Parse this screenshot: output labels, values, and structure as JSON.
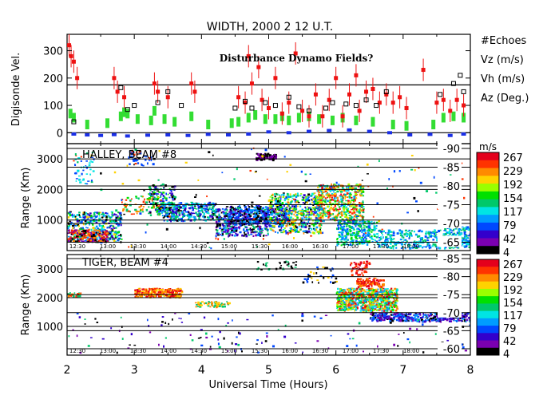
{
  "title": "WIDTH, 2000 2 12 U.T.",
  "overlay_text": "Disturbance Dynamo Fields?",
  "xlabel": "Universal Time (Hours)",
  "x_ticks": [
    "2",
    "3",
    "4",
    "5",
    "6",
    "7",
    "8"
  ],
  "colors": {
    "vz": "#1a2fe6",
    "vh": "#33dd33",
    "az": "#ee1111",
    "echoes": "#000000",
    "grid": "#000000"
  },
  "top_panel": {
    "ylabel": "Digisonde Vel.",
    "y_ticks": [
      "0",
      "100",
      "200",
      "300"
    ],
    "legend": [
      {
        "label": "#Echoes",
        "key": "echoes"
      },
      {
        "label": "Vz (m/s)",
        "key": "vz"
      },
      {
        "label": "Vh (m/s)",
        "key": "vh"
      },
      {
        "label": "Az (Deg.)",
        "key": "az"
      }
    ]
  },
  "colorbar_unit": "m/s",
  "colorbar_ticks": [
    "267",
    "229",
    "192",
    "154",
    "117",
    "79",
    "42",
    "4"
  ],
  "colorbar_colors": [
    "#e4001c",
    "#ff3300",
    "#ff8a00",
    "#ffd200",
    "#9aff00",
    "#00e000",
    "#00c86a",
    "#00e4e4",
    "#009cff",
    "#0048ff",
    "#3300cc",
    "#7a00b0",
    "#000000"
  ],
  "radar_panels": [
    {
      "name": "halley",
      "label": "HALLEY, BEAM #8",
      "ylabel": "Range (Km)",
      "y_ticks": [
        "1000",
        "2000",
        "3000"
      ],
      "lat_ticks": [
        "-90",
        "-85",
        "-80",
        "-75",
        "-70",
        "-65"
      ],
      "time_ticks": [
        "12:30",
        "13:00",
        "13:30",
        "14:00",
        "14:30",
        "15:00",
        "15:30",
        "16:00",
        "16:30",
        "17:00",
        "17:30",
        "18:00"
      ]
    },
    {
      "name": "tiger",
      "label": "TIGER, BEAM #4",
      "ylabel": "Range (Km)",
      "y_ticks": [
        "1000",
        "2000",
        "3000"
      ],
      "lat_ticks": [
        "-85",
        "-80",
        "-75",
        "-70",
        "-65",
        "-60"
      ],
      "time_ticks": [
        "12:30",
        "13:00",
        "13:30",
        "14:00",
        "14:30",
        "15:00",
        "15:30",
        "16:00",
        "16:30",
        "17:00",
        "17:30",
        "18:00"
      ]
    }
  ],
  "chart_data": {
    "type": "scatter",
    "title": "WIDTH, 2000 2 12 U.T.",
    "xlabel": "Universal Time (Hours)",
    "xlim": [
      2,
      8
    ],
    "panels": [
      {
        "name": "Digisonde",
        "ylabel": "Digisonde Vel.",
        "ylim": [
          -40,
          360
        ],
        "reference_lines": [
          0,
          175
        ],
        "series": [
          {
            "name": "Vz (m/s)",
            "points": [
              [
                2.1,
                -5
              ],
              [
                2.3,
                -8
              ],
              [
                2.5,
                -10
              ],
              [
                2.7,
                -7
              ],
              [
                2.9,
                -12
              ],
              [
                3.2,
                -9
              ],
              [
                3.5,
                -8
              ],
              [
                3.8,
                -10
              ],
              [
                4.1,
                -6
              ],
              [
                4.4,
                -8
              ],
              [
                4.7,
                -5
              ],
              [
                5.0,
                3
              ],
              [
                5.3,
                0
              ],
              [
                5.6,
                5
              ],
              [
                5.9,
                8
              ],
              [
                6.2,
                10
              ],
              [
                6.5,
                5
              ],
              [
                6.8,
                0
              ],
              [
                7.1,
                -8
              ],
              [
                7.4,
                -6
              ],
              [
                7.7,
                -10
              ],
              [
                7.9,
                -5
              ]
            ]
          },
          {
            "name": "Vh (m/s)",
            "points": [
              [
                2.05,
                70
              ],
              [
                2.1,
                55
              ],
              [
                2.3,
                30
              ],
              [
                2.6,
                35
              ],
              [
                2.8,
                60
              ],
              [
                2.85,
                75
              ],
              [
                2.9,
                70
              ],
              [
                3.05,
                50
              ],
              [
                3.25,
                45
              ],
              [
                3.3,
                80
              ],
              [
                3.45,
                50
              ],
              [
                3.6,
                40
              ],
              [
                3.85,
                60
              ],
              [
                4.1,
                30
              ],
              [
                4.45,
                35
              ],
              [
                4.55,
                40
              ],
              [
                4.7,
                55
              ],
              [
                4.8,
                65
              ],
              [
                4.95,
                50
              ],
              [
                5.1,
                50
              ],
              [
                5.2,
                60
              ],
              [
                5.3,
                45
              ],
              [
                5.45,
                55
              ],
              [
                5.6,
                60
              ],
              [
                5.75,
                50
              ],
              [
                5.95,
                45
              ],
              [
                6.1,
                55
              ],
              [
                6.3,
                45
              ],
              [
                6.55,
                40
              ],
              [
                6.85,
                30
              ],
              [
                7.05,
                25
              ],
              [
                7.45,
                30
              ],
              [
                7.6,
                55
              ],
              [
                7.75,
                60
              ],
              [
                7.9,
                55
              ]
            ]
          },
          {
            "name": "Az (Deg.)",
            "points": [
              [
                2.03,
                320
              ],
              [
                2.06,
                280
              ],
              [
                2.1,
                260
              ],
              [
                2.15,
                200
              ],
              [
                2.7,
                200
              ],
              [
                2.75,
                150
              ],
              [
                2.85,
                130
              ],
              [
                3.3,
                180
              ],
              [
                3.35,
                150
              ],
              [
                3.5,
                130
              ],
              [
                3.85,
                180
              ],
              [
                3.9,
                150
              ],
              [
                4.55,
                130
              ],
              [
                4.65,
                110
              ],
              [
                4.7,
                280
              ],
              [
                4.75,
                180
              ],
              [
                4.85,
                240
              ],
              [
                4.9,
                120
              ],
              [
                5.0,
                90
              ],
              [
                5.1,
                200
              ],
              [
                5.2,
                70
              ],
              [
                5.3,
                110
              ],
              [
                5.4,
                290
              ],
              [
                5.5,
                80
              ],
              [
                5.6,
                60
              ],
              [
                5.7,
                140
              ],
              [
                5.8,
                60
              ],
              [
                5.9,
                120
              ],
              [
                6.0,
                200
              ],
              [
                6.1,
                60
              ],
              [
                6.2,
                140
              ],
              [
                6.3,
                210
              ],
              [
                6.35,
                80
              ],
              [
                6.45,
                150
              ],
              [
                6.55,
                160
              ],
              [
                6.65,
                110
              ],
              [
                6.75,
                140
              ],
              [
                6.85,
                110
              ],
              [
                6.95,
                130
              ],
              [
                7.05,
                90
              ],
              [
                7.3,
                230
              ],
              [
                7.5,
                110
              ],
              [
                7.6,
                120
              ],
              [
                7.7,
                80
              ],
              [
                7.8,
                120
              ],
              [
                7.9,
                100
              ]
            ]
          },
          {
            "name": "#Echoes",
            "points": [
              [
                2.1,
                40
              ],
              [
                2.8,
                165
              ],
              [
                2.9,
                85
              ],
              [
                3.0,
                100
              ],
              [
                3.35,
                110
              ],
              [
                3.5,
                150
              ],
              [
                3.7,
                100
              ],
              [
                4.5,
                90
              ],
              [
                4.65,
                115
              ],
              [
                4.75,
                90
              ],
              [
                4.95,
                110
              ],
              [
                5.1,
                100
              ],
              [
                5.3,
                130
              ],
              [
                5.45,
                95
              ],
              [
                5.6,
                80
              ],
              [
                5.85,
                90
              ],
              [
                5.95,
                110
              ],
              [
                6.15,
                105
              ],
              [
                6.3,
                100
              ],
              [
                6.45,
                120
              ],
              [
                6.6,
                100
              ],
              [
                6.75,
                150
              ],
              [
                7.55,
                140
              ],
              [
                7.75,
                180
              ],
              [
                7.85,
                210
              ],
              [
                7.9,
                150
              ]
            ]
          }
        ]
      },
      {
        "name": "HALLEY, BEAM #8",
        "ylabel": "Range (Km)",
        "ylim": [
          0,
          3500
        ],
        "colorbar": {
          "label": "m/s",
          "range": [
            4,
            267
          ]
        }
      },
      {
        "name": "TIGER, BEAM #4",
        "ylabel": "Range (Km)",
        "ylim": [
          0,
          3500
        ],
        "colorbar": {
          "label": "m/s",
          "range": [
            4,
            267
          ]
        }
      }
    ]
  }
}
